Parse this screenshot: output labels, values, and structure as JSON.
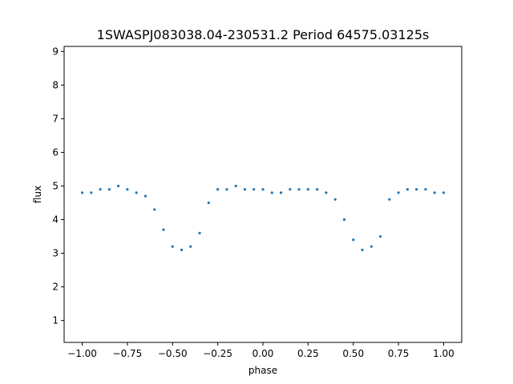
{
  "chart_data": {
    "type": "scatter",
    "title": "1SWASPJ083038.04-230531.2 Period 64575.03125s",
    "xlabel": "phase",
    "ylabel": "flux",
    "xlim": [
      -1.1,
      1.1
    ],
    "ylim": [
      0.35,
      9.15
    ],
    "xticks": [
      -1.0,
      -0.75,
      -0.5,
      -0.25,
      0.0,
      0.25,
      0.5,
      0.75,
      1.0
    ],
    "xtick_labels": [
      "−1.00",
      "−0.75",
      "−0.50",
      "−0.25",
      "0.00",
      "0.25",
      "0.50",
      "0.75",
      "1.00"
    ],
    "yticks": [
      1,
      2,
      3,
      4,
      5,
      6,
      7,
      8,
      9
    ],
    "ytick_labels": [
      "1",
      "2",
      "3",
      "4",
      "5",
      "6",
      "7",
      "8",
      "9"
    ],
    "grid": false,
    "marker_color": "#1f77b4",
    "series": [
      {
        "x": [
          -1.0,
          -0.95,
          -0.9,
          -0.85,
          -0.8,
          -0.75,
          -0.7,
          -0.65,
          -0.6,
          -0.55,
          -0.5,
          -0.45,
          -0.4,
          -0.35,
          -0.3,
          -0.25,
          -0.2,
          -0.15,
          -0.1,
          -0.05,
          0.0,
          0.05,
          0.1,
          0.15,
          0.2,
          0.25,
          0.3,
          0.35,
          0.4,
          0.45,
          0.5,
          0.55,
          0.6,
          0.65,
          0.7,
          0.75,
          0.8,
          0.85,
          0.9,
          0.95,
          1.0
        ],
        "y": [
          4.8,
          4.8,
          4.9,
          4.9,
          5.0,
          4.9,
          4.8,
          4.7,
          4.3,
          3.7,
          3.2,
          3.1,
          3.2,
          3.6,
          4.5,
          4.9,
          4.9,
          5.0,
          4.9,
          4.9,
          4.9,
          4.8,
          4.8,
          4.9,
          4.9,
          4.9,
          4.9,
          4.8,
          4.6,
          4.0,
          3.4,
          3.1,
          3.2,
          3.5,
          4.6,
          4.8,
          4.9,
          4.9,
          4.9,
          4.8,
          4.8
        ]
      }
    ]
  }
}
